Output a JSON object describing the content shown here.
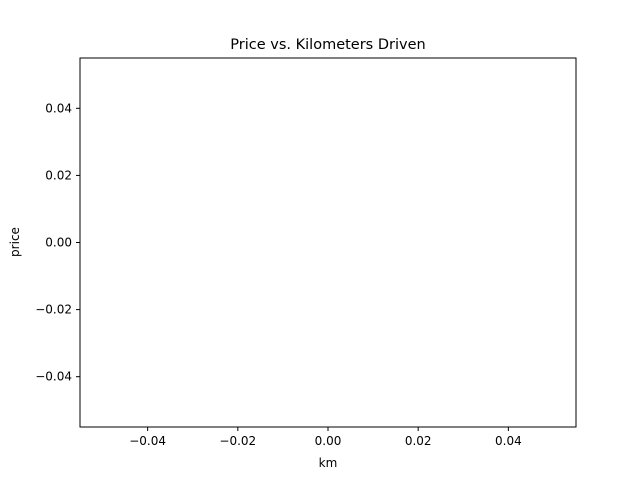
{
  "chart_data": {
    "type": "scatter",
    "title": "Price vs. Kilometers Driven",
    "xlabel": "km",
    "ylabel": "price",
    "xlim": [
      -0.055,
      0.055
    ],
    "ylim": [
      -0.055,
      0.055
    ],
    "x_ticks": [
      -0.04,
      -0.02,
      0.0,
      0.02,
      0.04
    ],
    "y_ticks": [
      -0.04,
      -0.02,
      0.0,
      0.02,
      0.04
    ],
    "x_tick_labels": [
      "−0.04",
      "−0.02",
      "0.00",
      "0.02",
      "0.04"
    ],
    "y_tick_labels": [
      "−0.04",
      "−0.02",
      "0.00",
      "0.02",
      "0.04"
    ],
    "x": [],
    "y": [],
    "grid": false,
    "legend": false
  },
  "colors": {
    "axes": "#000000",
    "background": "#ffffff"
  }
}
